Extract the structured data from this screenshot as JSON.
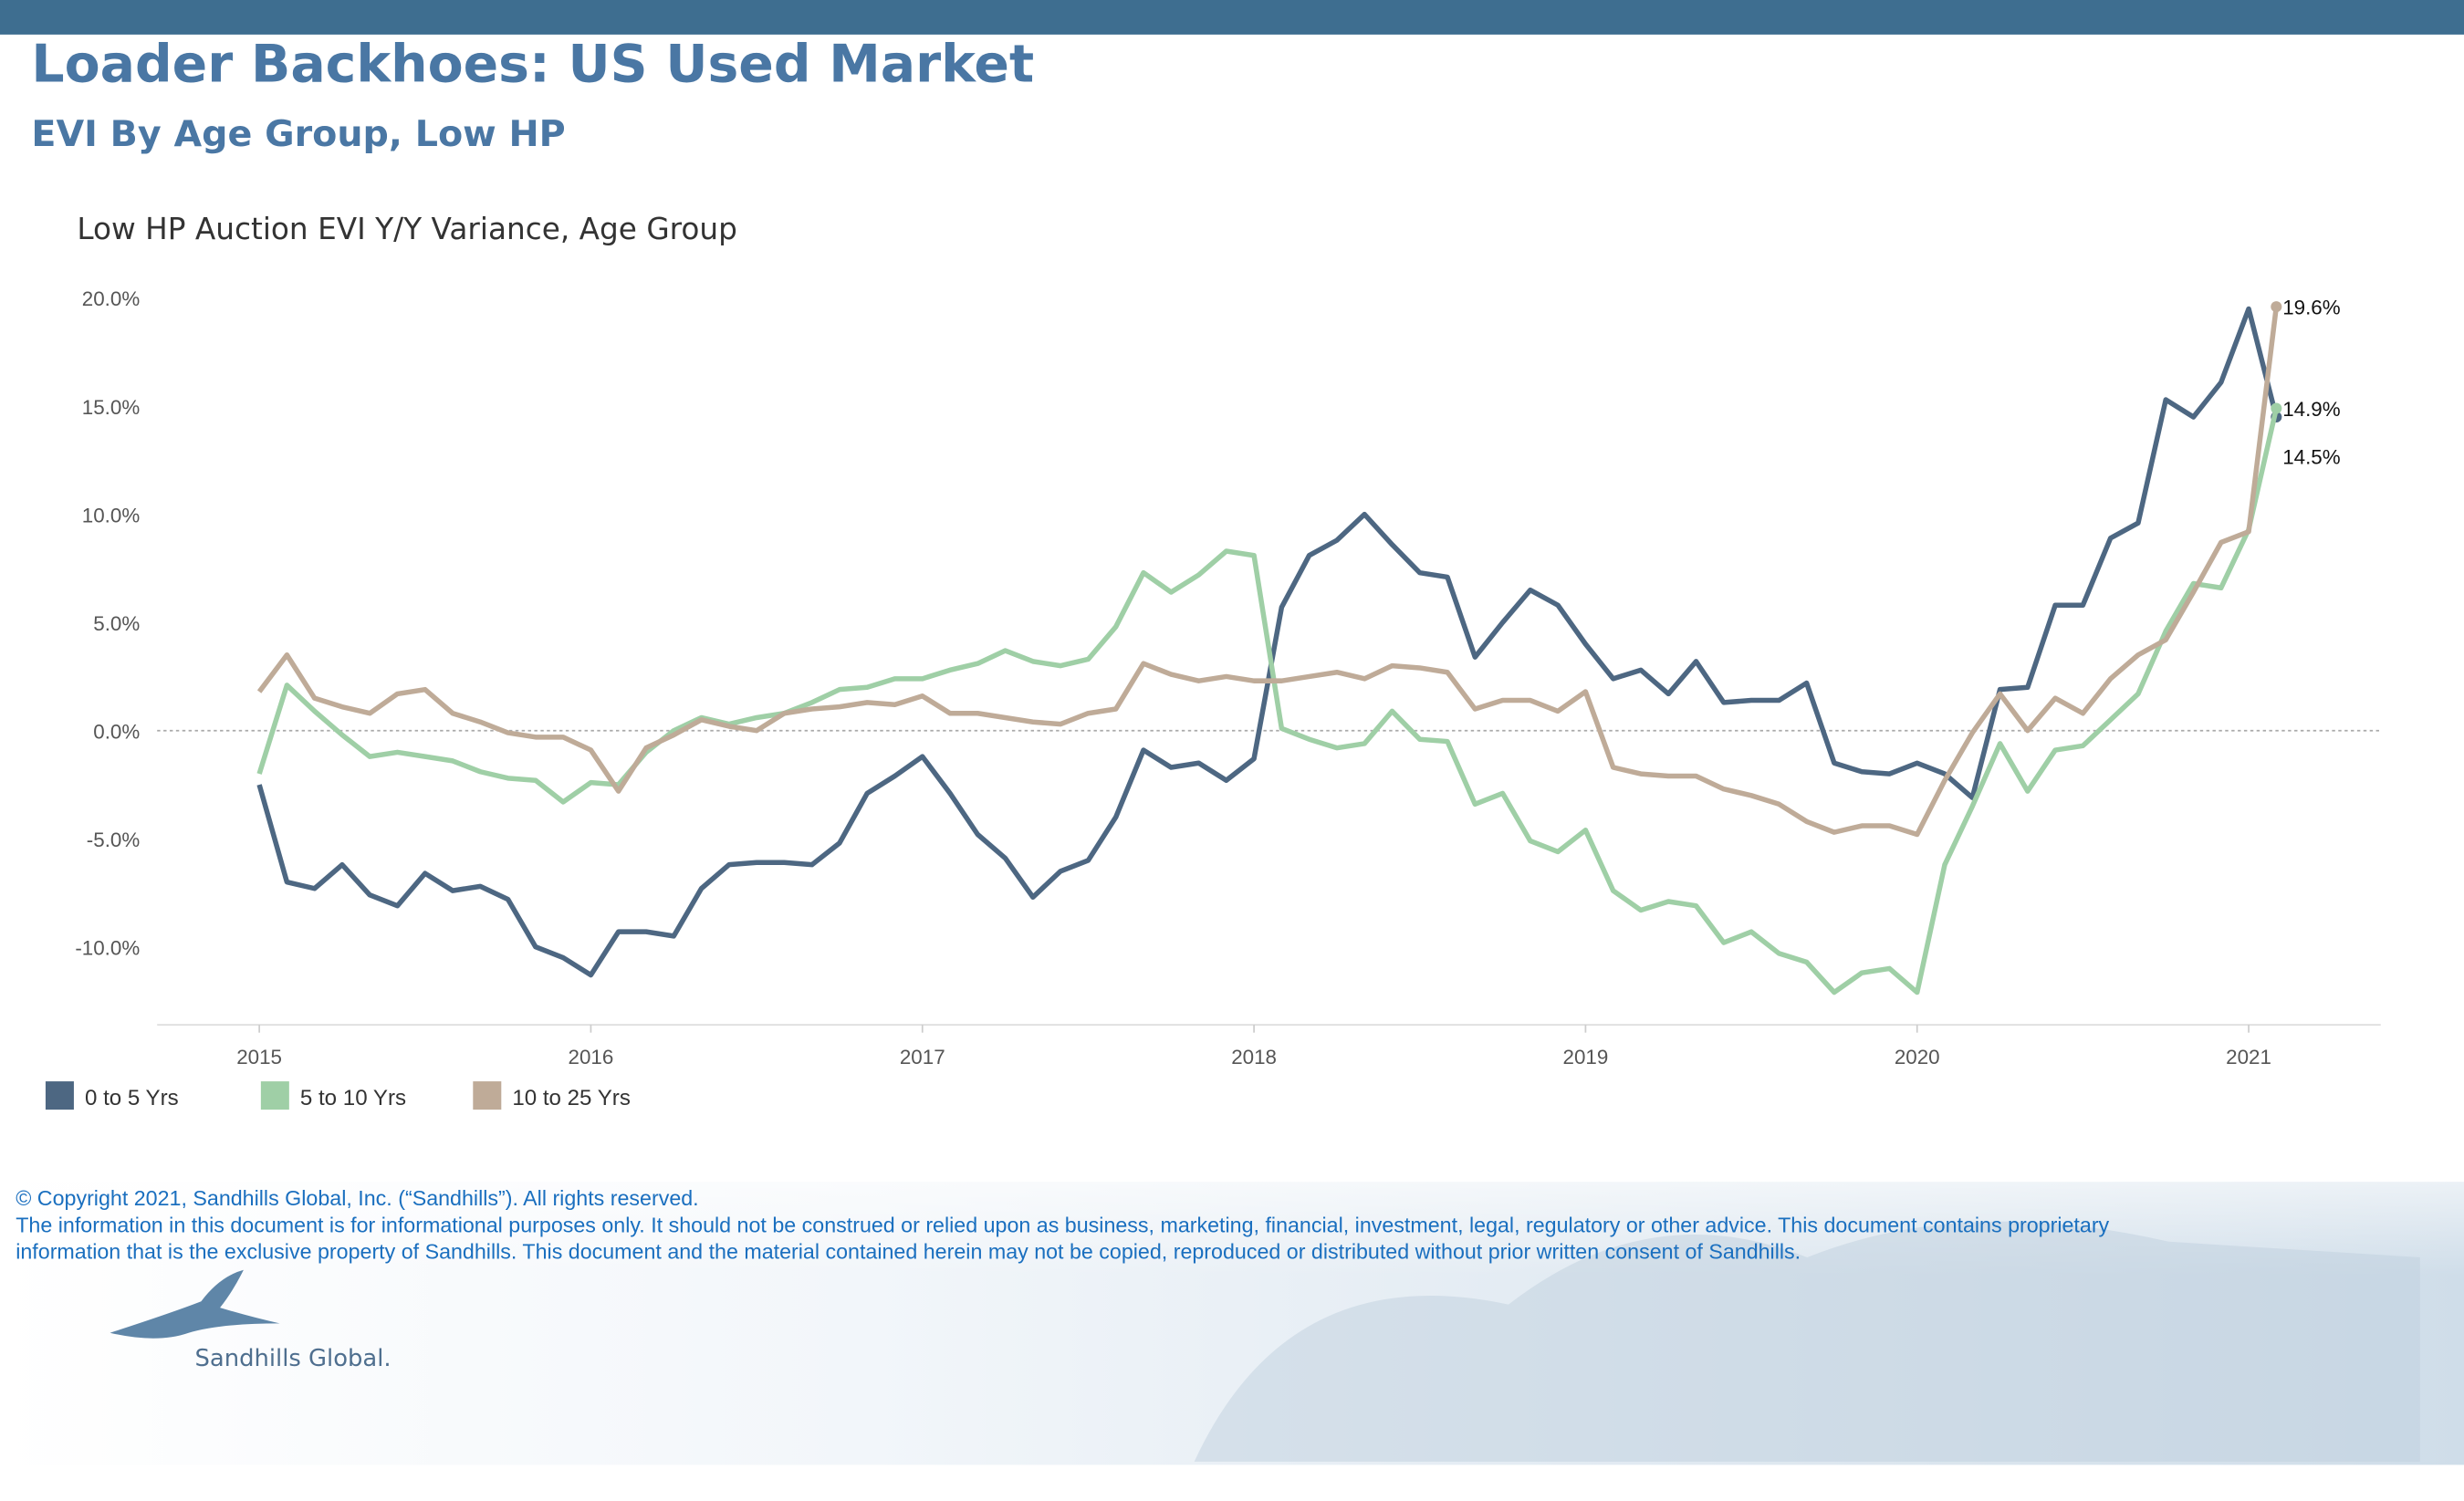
{
  "header": {
    "title": "Loader Backhoes:  US Used Market",
    "subtitle": "EVI By Age Group, Low HP"
  },
  "chart_data": {
    "type": "line",
    "title": "Low HP Auction EVI Y/Y Variance, Age Group",
    "categories": [
      "2015",
      null,
      null,
      null,
      null,
      null,
      null,
      null,
      null,
      null,
      null,
      null,
      "2016",
      null,
      null,
      null,
      null,
      null,
      null,
      null,
      null,
      null,
      null,
      null,
      "2017",
      null,
      null,
      null,
      null,
      null,
      null,
      null,
      null,
      null,
      null,
      null,
      "2018",
      null,
      null,
      null,
      null,
      null,
      null,
      null,
      null,
      null,
      null,
      null,
      "2019",
      null,
      null,
      null,
      null,
      null,
      null,
      null,
      null,
      null,
      null,
      null,
      "2020",
      null,
      null,
      null,
      null,
      null,
      null,
      null,
      null,
      null,
      null,
      null,
      "2021",
      null
    ],
    "ylim": [
      -13.6,
      20.7
    ],
    "yticks": [
      {
        "value": -10,
        "label": "-10.0%"
      },
      {
        "value": -5,
        "label": "-5.0%"
      },
      {
        "value": 0,
        "label": "0.0%"
      },
      {
        "value": 5,
        "label": "5.0%"
      },
      {
        "value": 10,
        "label": "10.0%"
      },
      {
        "value": 15,
        "label": "15.0%"
      },
      {
        "value": 20,
        "label": "20.0%"
      }
    ],
    "grid": false,
    "series": [
      {
        "name": "0 to 5 Yrs",
        "color": "#4d6782",
        "values": [
          -2.5,
          -7.0,
          -7.3,
          -6.2,
          -7.6,
          -8.1,
          -6.6,
          -7.4,
          -7.2,
          -7.8,
          -10.0,
          -10.5,
          -11.3,
          -9.3,
          -9.3,
          -9.5,
          -7.3,
          -6.2,
          -6.1,
          -6.1,
          -6.2,
          -5.2,
          -2.9,
          -2.1,
          -1.2,
          -2.9,
          -4.8,
          -5.9,
          -7.7,
          -6.5,
          -6.0,
          -4.0,
          -0.9,
          -1.7,
          -1.5,
          -2.3,
          -1.3,
          5.7,
          8.1,
          8.8,
          10.0,
          8.6,
          7.3,
          7.1,
          3.4,
          5.0,
          6.5,
          5.8,
          4.0,
          2.4,
          2.8,
          1.7,
          3.2,
          1.3,
          1.4,
          1.4,
          2.2,
          -1.5,
          -1.9,
          -2.0,
          -1.5,
          -2.0,
          -3.1,
          1.9,
          2.0,
          5.8,
          5.8,
          8.9,
          9.6,
          15.3,
          14.5,
          16.1,
          19.5,
          14.5
        ],
        "value_labels": [
          null,
          null,
          null,
          null,
          null,
          null,
          null,
          null,
          null,
          null,
          null,
          null,
          null,
          null,
          null,
          null,
          null,
          null,
          null,
          null,
          null,
          null,
          null,
          null,
          null,
          null,
          null,
          null,
          null,
          null,
          null,
          null,
          null,
          null,
          null,
          null,
          null,
          null,
          null,
          null,
          null,
          null,
          null,
          null,
          null,
          null,
          null,
          null,
          null,
          null,
          null,
          null,
          null,
          null,
          null,
          null,
          null,
          null,
          null,
          null,
          null,
          null,
          null,
          null,
          null,
          null,
          null,
          null,
          null,
          null,
          null,
          null,
          null,
          "14.5%"
        ]
      },
      {
        "name": "5 to 10 Yrs",
        "color": "#9fcfa6",
        "values": [
          -2.0,
          2.1,
          0.9,
          -0.2,
          -1.2,
          -1.0,
          -1.2,
          -1.4,
          -1.9,
          -2.2,
          -2.3,
          -3.3,
          -2.4,
          -2.5,
          -1.0,
          0.0,
          0.6,
          0.3,
          0.6,
          0.8,
          1.3,
          1.9,
          2.0,
          2.4,
          2.4,
          2.8,
          3.1,
          3.7,
          3.2,
          3.0,
          3.3,
          4.8,
          7.3,
          6.4,
          7.2,
          8.3,
          8.1,
          0.1,
          -0.4,
          -0.8,
          -0.6,
          0.9,
          -0.4,
          -0.5,
          -3.4,
          -2.9,
          -5.1,
          -5.6,
          -4.6,
          -7.4,
          -8.3,
          -7.9,
          -8.1,
          -9.8,
          -9.3,
          -10.3,
          -10.7,
          -12.1,
          -11.2,
          -11.0,
          -12.1,
          -6.2,
          -3.5,
          -0.6,
          -2.8,
          -0.9,
          -0.7,
          0.5,
          1.7,
          4.6,
          6.8,
          6.6,
          9.3,
          14.9
        ],
        "value_labels": [
          null,
          null,
          null,
          null,
          null,
          null,
          null,
          null,
          null,
          null,
          null,
          null,
          null,
          null,
          null,
          null,
          null,
          null,
          null,
          null,
          null,
          null,
          null,
          null,
          null,
          null,
          null,
          null,
          null,
          null,
          null,
          null,
          null,
          null,
          null,
          null,
          null,
          null,
          null,
          null,
          null,
          null,
          null,
          null,
          null,
          null,
          null,
          null,
          null,
          null,
          null,
          null,
          null,
          null,
          null,
          null,
          null,
          null,
          null,
          null,
          null,
          null,
          null,
          null,
          null,
          null,
          null,
          null,
          null,
          null,
          null,
          null,
          null,
          "14.9%"
        ]
      },
      {
        "name": "10 to 25 Yrs",
        "color": "#bfab98",
        "values": [
          1.8,
          3.5,
          1.5,
          1.1,
          0.8,
          1.7,
          1.9,
          0.8,
          0.4,
          -0.1,
          -0.3,
          -0.3,
          -0.9,
          -2.8,
          -0.8,
          -0.2,
          0.5,
          0.2,
          0.0,
          0.8,
          1.0,
          1.1,
          1.3,
          1.2,
          1.6,
          0.8,
          0.8,
          0.6,
          0.4,
          0.3,
          0.8,
          1.0,
          3.1,
          2.6,
          2.3,
          2.5,
          2.3,
          2.3,
          2.5,
          2.7,
          2.4,
          3.0,
          2.9,
          2.7,
          1.0,
          1.4,
          1.4,
          0.9,
          1.8,
          -1.7,
          -2.0,
          -2.1,
          -2.1,
          -2.7,
          -3.0,
          -3.4,
          -4.2,
          -4.7,
          -4.4,
          -4.4,
          -4.8,
          -2.3,
          -0.1,
          1.7,
          0.0,
          1.5,
          0.8,
          2.4,
          3.5,
          4.2,
          6.4,
          8.7,
          9.2,
          19.6
        ],
        "value_labels": [
          null,
          null,
          null,
          null,
          null,
          null,
          null,
          null,
          null,
          null,
          null,
          null,
          null,
          null,
          null,
          null,
          null,
          null,
          null,
          null,
          null,
          null,
          null,
          null,
          null,
          null,
          null,
          null,
          null,
          null,
          null,
          null,
          null,
          null,
          null,
          null,
          null,
          null,
          null,
          null,
          null,
          null,
          null,
          null,
          null,
          null,
          null,
          null,
          null,
          null,
          null,
          null,
          null,
          null,
          null,
          null,
          null,
          null,
          null,
          null,
          null,
          null,
          null,
          null,
          null,
          null,
          null,
          null,
          null,
          null,
          null,
          null,
          null,
          "19.6%"
        ]
      }
    ]
  },
  "footer": {
    "copyright": "© Copyright 2021, Sandhills Global, Inc. (“Sandhills”). All rights reserved.",
    "disclaimer_lines": [
      "The information in this document is for informational purposes only.  It should not be construed or relied upon as business, marketing, financial, investment, legal, regulatory or other advice. This document contains proprietary",
      "information that is the exclusive property of Sandhills. This document and the material contained herein may not be copied, reproduced or distributed without prior written consent of Sandhills."
    ],
    "logo": "Sandhills Global."
  }
}
